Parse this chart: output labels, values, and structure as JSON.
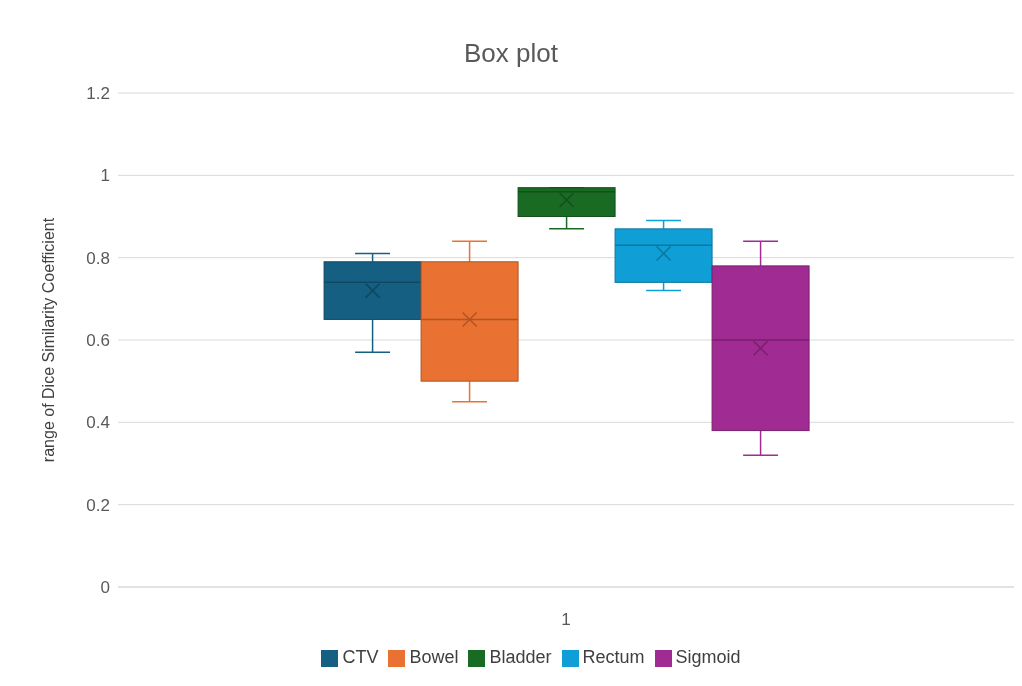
{
  "chart_data": {
    "type": "box",
    "title": "Box plot",
    "ylabel": "range of Dice Similarity Coefficient",
    "categories": [
      "1"
    ],
    "ylim": [
      0,
      1.2
    ],
    "yticks": [
      0,
      0.2,
      0.4,
      0.6,
      0.8,
      1,
      1.2
    ],
    "grid": "y",
    "legend": "bottom",
    "series": [
      {
        "name": "CTV",
        "color": "#155f82",
        "boxes": [
          {
            "low": 0.57,
            "q1": 0.65,
            "median": 0.74,
            "q3": 0.79,
            "high": 0.81,
            "mean": 0.72
          }
        ]
      },
      {
        "name": "Bowel",
        "color": "#e97132",
        "boxes": [
          {
            "low": 0.45,
            "q1": 0.5,
            "median": 0.65,
            "q3": 0.79,
            "high": 0.84,
            "mean": 0.65
          }
        ]
      },
      {
        "name": "Bladder",
        "color": "#196b24",
        "boxes": [
          {
            "low": 0.87,
            "q1": 0.9,
            "median": 0.96,
            "q3": 0.97,
            "high": 0.97,
            "mean": 0.94
          }
        ]
      },
      {
        "name": "Rectum",
        "color": "#0f9ed5",
        "boxes": [
          {
            "low": 0.72,
            "q1": 0.74,
            "median": 0.83,
            "q3": 0.87,
            "high": 0.89,
            "mean": 0.81
          }
        ]
      },
      {
        "name": "Sigmoid",
        "color": "#a02b93",
        "boxes": [
          {
            "low": 0.32,
            "q1": 0.38,
            "median": 0.6,
            "q3": 0.78,
            "high": 0.84,
            "mean": 0.58
          }
        ]
      }
    ]
  }
}
